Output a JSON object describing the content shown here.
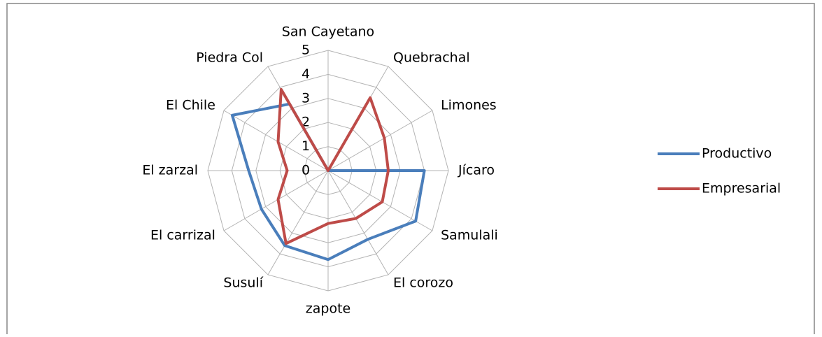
{
  "chart_data": {
    "type": "radar",
    "categories": [
      "San Cayetano",
      "Quebrachal",
      "Limones",
      "Jícaro",
      "Samulali",
      "El corozo",
      "zapote",
      "Susulí",
      "El carrizal",
      "El zarzal",
      "El Chile",
      "Piedra Col"
    ],
    "series": [
      {
        "name": "Productivo",
        "color": "#4a7ebb",
        "values": [
          0,
          0,
          0,
          4.0,
          4.2,
          3.3,
          3.7,
          3.6,
          3.2,
          3.3,
          4.6,
          3.2
        ]
      },
      {
        "name": "Empresarial",
        "color": "#be4b48",
        "values": [
          0,
          3.5,
          2.7,
          2.5,
          2.6,
          2.3,
          2.2,
          3.5,
          2.4,
          1.7,
          2.4,
          3.9
        ]
      }
    ],
    "rlim": [
      0,
      5
    ],
    "rticks": [
      0,
      1,
      2,
      3,
      4,
      5
    ],
    "grid": true,
    "legend": "right"
  }
}
